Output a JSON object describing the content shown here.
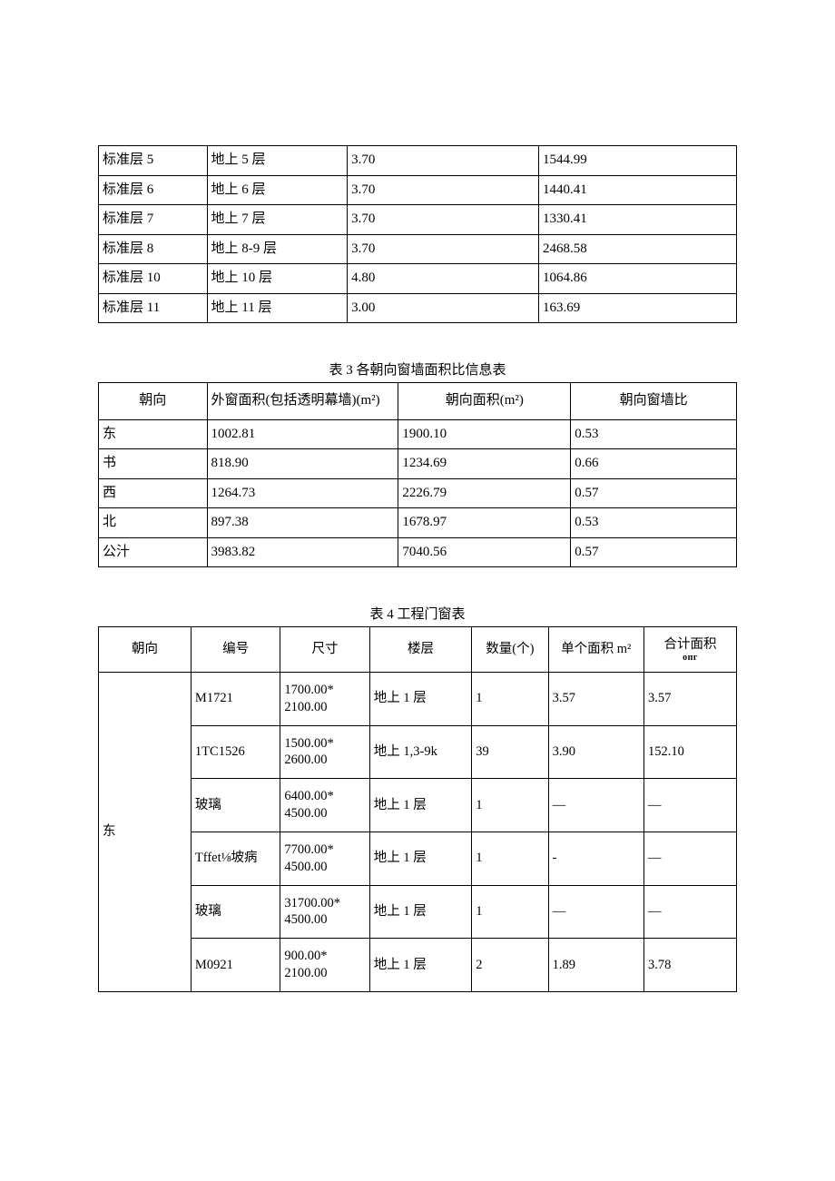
{
  "table1": {
    "rows": [
      [
        "标准层 5",
        "地上 5 层",
        "3.70",
        "1544.99"
      ],
      [
        "标准层 6",
        "地上 6 层",
        "3.70",
        "1440.41"
      ],
      [
        "标准层 7",
        "地上 7 层",
        "3.70",
        "1330.41"
      ],
      [
        "标准层 8",
        "地上 8-9 层",
        "3.70",
        "2468.58"
      ],
      [
        "标准层 10",
        "地上 10 层",
        "4.80",
        "1064.86"
      ],
      [
        "标准层 11",
        "地上 11 层",
        "3.00",
        "163.69"
      ]
    ]
  },
  "table2": {
    "title": "表 3 各朝向窗墙面积比信息表",
    "headers": [
      "朝向",
      "外窗面积(包括透明幕墙)(m²)",
      "朝向面积(m²)",
      "朝向窗墙比"
    ],
    "rows": [
      [
        "东",
        "1002.81",
        "1900.10",
        "0.53"
      ],
      [
        "书",
        "818.90",
        "1234.69",
        "0.66"
      ],
      [
        "西",
        "1264.73",
        "2226.79",
        "0.57"
      ],
      [
        "北",
        "897.38",
        "1678.97",
        "0.53"
      ],
      [
        "公汁",
        "3983.82",
        "7040.56",
        "0.57"
      ]
    ]
  },
  "table3": {
    "title": "表 4 工程门窗表",
    "headers": {
      "c1": "朝向",
      "c2": "编号",
      "c3": "尺寸",
      "c4": "楼层",
      "c5": "数量(个)",
      "c6": "单个面积 m²",
      "c7": "合计面积",
      "c7sub": "опг"
    },
    "group_label": "东",
    "rows": [
      [
        "M1721",
        "1700.00* 2100.00",
        "地上 1 层",
        "1",
        "3.57",
        "3.57"
      ],
      [
        "1TC1526",
        "1500.00* 2600.00",
        "地上 1,3-9k",
        "39",
        "3.90",
        "152.10"
      ],
      [
        "玻璃",
        "6400.00* 4500.00",
        "地上 1 层",
        "1",
        "—",
        "—"
      ],
      [
        "Tffet⅛坡病",
        "7700.00* 4500.00",
        "地上 1 层",
        "1",
        "-",
        "—"
      ],
      [
        "玻璃",
        "31700.00* 4500.00",
        "地上 1 层",
        "1",
        "—",
        "—"
      ],
      [
        "M0921",
        "900.00* 2100.00",
        "地上 1 层",
        "2",
        "1.89",
        "3.78"
      ]
    ]
  }
}
